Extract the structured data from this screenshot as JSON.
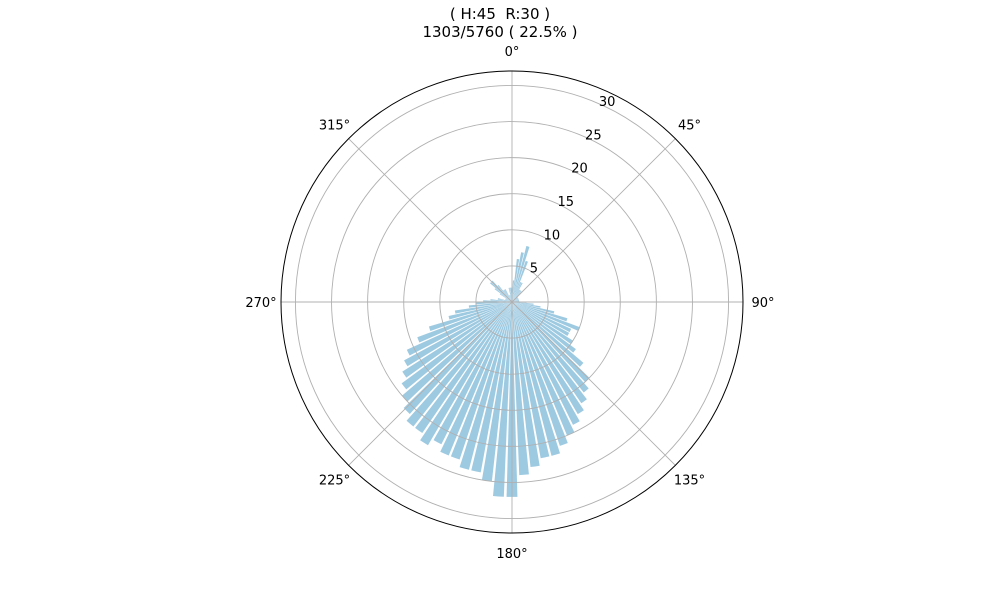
{
  "title_line1": "( H:45  R:30 )",
  "title_line2": "1303/5760 ( 22.5% )",
  "chart_data": {
    "type": "bar",
    "subtype": "polar-histogram",
    "theta_direction": "clockwise",
    "theta_zero": "north",
    "angle_ticks": [
      "0°",
      "45°",
      "90°",
      "135°",
      "180°",
      "225°",
      "270°",
      "315°"
    ],
    "radial_ticks": [
      5,
      10,
      15,
      20,
      25,
      30
    ],
    "rlim": [
      0,
      32
    ],
    "bin_width_deg": 4,
    "bar_color": "#9ecae1",
    "grid": true,
    "bins_deg": [
      0,
      4,
      8,
      12,
      16,
      20,
      24,
      28,
      32,
      36,
      40,
      44,
      48,
      52,
      56,
      60,
      64,
      68,
      72,
      76,
      80,
      84,
      88,
      92,
      96,
      100,
      104,
      108,
      112,
      116,
      120,
      124,
      128,
      132,
      136,
      140,
      144,
      148,
      152,
      156,
      160,
      164,
      168,
      172,
      176,
      180,
      184,
      188,
      192,
      196,
      200,
      204,
      208,
      212,
      216,
      220,
      224,
      228,
      232,
      236,
      240,
      244,
      248,
      252,
      256,
      260,
      264,
      268,
      272,
      276,
      280,
      284,
      288,
      292,
      296,
      300,
      304,
      308,
      312,
      316,
      320,
      324,
      328,
      332,
      336,
      340,
      344,
      348,
      352,
      356
    ],
    "values": [
      2,
      3,
      6,
      7,
      8,
      6,
      3,
      3,
      2,
      2,
      2,
      1,
      1,
      1,
      1,
      1,
      1,
      1,
      1,
      1,
      1,
      1,
      1,
      2,
      3,
      4,
      6,
      8,
      10,
      9,
      9,
      10,
      11,
      13,
      15,
      16,
      17,
      18,
      19,
      20,
      21,
      22,
      22,
      23,
      24,
      27,
      27,
      25,
      24,
      24,
      23,
      23,
      22,
      23,
      22,
      22,
      21,
      20,
      19,
      18,
      17,
      16,
      14,
      12,
      9,
      8,
      6,
      5,
      4,
      3,
      2,
      2,
      1,
      1,
      1,
      1,
      2,
      3,
      4,
      4,
      3,
      2,
      2,
      2,
      1,
      1,
      1,
      2,
      2,
      2
    ]
  }
}
